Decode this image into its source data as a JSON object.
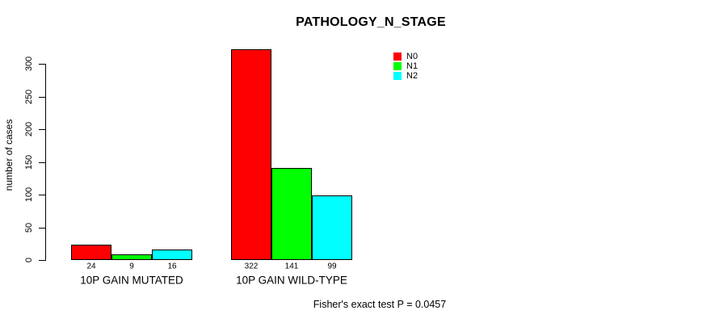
{
  "chart_data": {
    "type": "bar",
    "title": "PATHOLOGY_N_STAGE",
    "ylabel": "number of cases",
    "xlabel": "",
    "yticks": [
      0,
      50,
      100,
      150,
      200,
      250,
      300
    ],
    "ylim": [
      0,
      322
    ],
    "grid": false,
    "legend_position": "top-right",
    "categories": [
      "10P GAIN MUTATED",
      "10P GAIN WILD-TYPE"
    ],
    "series": [
      {
        "name": "N0",
        "color": "#FF0000",
        "values": [
          24,
          322
        ]
      },
      {
        "name": "N1",
        "color": "#00FF00",
        "values": [
          9,
          141
        ]
      },
      {
        "name": "N2",
        "color": "#00FFFF",
        "values": [
          16,
          99
        ]
      }
    ],
    "bar_value_labels": [
      [
        "24",
        "9",
        "16"
      ],
      [
        "322",
        "141",
        "99"
      ]
    ],
    "annotation": "Fisher's exact test P = 0.0457"
  }
}
